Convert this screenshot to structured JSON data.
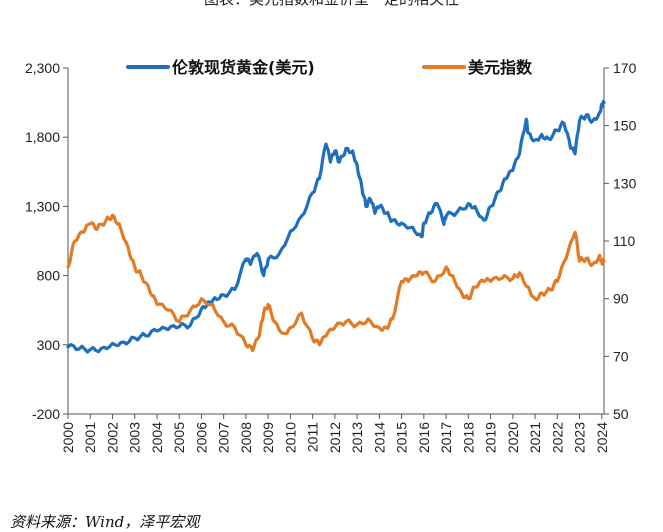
{
  "figure_title": "图表：美元指数和金价呈一定的相关性",
  "source": "资料来源：Wind，泽平宏观",
  "chart_data": {
    "type": "line",
    "title": "",
    "xlabel": "",
    "ylabel_left": "",
    "ylabel_right": "",
    "x_tick_labels": [
      "2000",
      "2001",
      "2002",
      "2003",
      "2004",
      "2005",
      "2006",
      "2007",
      "2008",
      "2009",
      "2010",
      "2011",
      "2012",
      "2013",
      "2014",
      "2015",
      "2016",
      "2017",
      "2018",
      "2019",
      "2020",
      "2021",
      "2022",
      "2023",
      "2024"
    ],
    "y_left_ticks": [
      "-200",
      "300",
      "800",
      "1,300",
      "1,800",
      "2,300"
    ],
    "y_right_ticks": [
      "50",
      "70",
      "90",
      "110",
      "130",
      "150",
      "170"
    ],
    "ylim_left": [
      -200,
      2300
    ],
    "ylim_right": [
      50,
      170
    ],
    "xlim": [
      2000,
      2024.1
    ],
    "legend_position": "top",
    "grid": false,
    "series": [
      {
        "name": "伦敦现货黄金(美元)",
        "axis": "left",
        "color": "#1f6fbf",
        "x": [
          2000,
          2000.5,
          2001,
          2001.5,
          2002,
          2002.5,
          2003,
          2003.5,
          2004,
          2004.5,
          2005,
          2005.5,
          2006,
          2006.3,
          2006.6,
          2007,
          2007.5,
          2008,
          2008.2,
          2008.5,
          2008.8,
          2009,
          2009.5,
          2010,
          2010.5,
          2011,
          2011.3,
          2011.6,
          2011.8,
          2012,
          2012.2,
          2012.5,
          2012.8,
          2013,
          2013.2,
          2013.4,
          2013.6,
          2013.8,
          2014,
          2014.3,
          2014.6,
          2015,
          2015.5,
          2015.9,
          2016,
          2016.3,
          2016.6,
          2016.9,
          2017,
          2017.5,
          2018,
          2018.3,
          2018.7,
          2019,
          2019.4,
          2019.7,
          2020,
          2020.3,
          2020.6,
          2020.7,
          2021,
          2021.3,
          2021.6,
          2022,
          2022.3,
          2022.6,
          2022.8,
          2023,
          2023.3,
          2023.6,
          2023.9,
          2024,
          2024.1
        ],
        "values": [
          285,
          270,
          265,
          275,
          310,
          320,
          350,
          365,
          400,
          410,
          430,
          440,
          560,
          610,
          640,
          660,
          700,
          920,
          880,
          960,
          800,
          920,
          960,
          1120,
          1230,
          1400,
          1500,
          1750,
          1620,
          1700,
          1620,
          1720,
          1700,
          1600,
          1450,
          1300,
          1350,
          1250,
          1300,
          1250,
          1200,
          1180,
          1150,
          1080,
          1180,
          1250,
          1320,
          1170,
          1230,
          1260,
          1320,
          1300,
          1200,
          1300,
          1410,
          1500,
          1560,
          1680,
          1930,
          1830,
          1780,
          1820,
          1790,
          1850,
          1900,
          1720,
          1680,
          1920,
          1960,
          1920,
          1980,
          2040,
          2050
        ]
      },
      {
        "name": "美元指数",
        "axis": "right",
        "color": "#e27a26",
        "x": [
          2000,
          2000.3,
          2000.7,
          2001,
          2001.3,
          2001.7,
          2002,
          2002.3,
          2002.7,
          2003,
          2003.3,
          2003.7,
          2004,
          2004.5,
          2005,
          2005.5,
          2006,
          2006.5,
          2007,
          2007.5,
          2008,
          2008.3,
          2008.6,
          2008.8,
          2009,
          2009.3,
          2009.7,
          2010,
          2010.5,
          2011,
          2011.3,
          2011.6,
          2012,
          2012.5,
          2013,
          2013.5,
          2014,
          2014.3,
          2014.6,
          2015,
          2015.3,
          2015.7,
          2016,
          2016.5,
          2017,
          2017.3,
          2017.7,
          2018,
          2018.3,
          2018.7,
          2019,
          2019.5,
          2020,
          2020.3,
          2020.7,
          2021,
          2021.3,
          2021.7,
          2022,
          2022.4,
          2022.8,
          2023,
          2023.3,
          2023.6,
          2023.9,
          2024,
          2024.1
        ],
        "values": [
          101,
          110,
          113,
          116,
          114,
          117,
          119,
          116,
          108,
          101,
          98,
          92,
          88,
          86,
          82,
          86,
          90,
          88,
          82,
          80,
          74,
          72,
          77,
          85,
          88,
          82,
          78,
          80,
          85,
          76,
          74,
          77,
          80,
          82,
          81,
          83,
          80,
          80,
          83,
          96,
          96,
          98,
          99,
          96,
          101,
          98,
          92,
          90,
          94,
          96,
          96,
          97,
          97,
          99,
          94,
          90,
          92,
          93,
          96,
          104,
          113,
          103,
          104,
          102,
          105,
          103,
          103
        ]
      }
    ]
  }
}
